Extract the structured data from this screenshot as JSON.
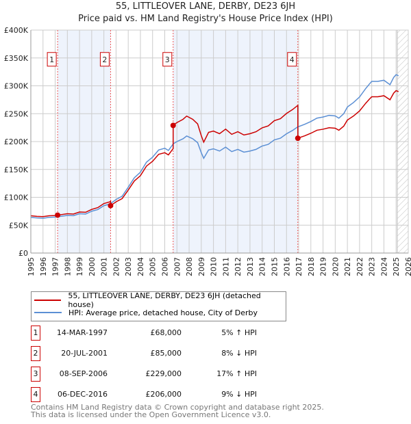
{
  "title": "55, LITTLEOVER LANE, DERBY, DE23 6JH",
  "subtitle": "Price paid vs. HM Land Registry's House Price Index (HPI)",
  "chart_data": {
    "type": "line",
    "title": "55, LITTLEOVER LANE, DERBY, DE23 6JH - Price paid vs. HM Land Registry's House Price Index (HPI)",
    "xlim": [
      1995,
      2026
    ],
    "ylim": [
      0,
      400000
    ],
    "y_ticks": [
      "£0",
      "£50K",
      "£100K",
      "£150K",
      "£200K",
      "£250K",
      "£300K",
      "£350K",
      "£400K"
    ],
    "x_ticks": [
      "1995",
      "1996",
      "1997",
      "1998",
      "1999",
      "2000",
      "2001",
      "2002",
      "2003",
      "2004",
      "2005",
      "2006",
      "2007",
      "2008",
      "2009",
      "2010",
      "2011",
      "2012",
      "2013",
      "2014",
      "2015",
      "2016",
      "2017",
      "2018",
      "2019",
      "2020",
      "2021",
      "2022",
      "2023",
      "2024",
      "2025",
      "2026"
    ],
    "grid": true,
    "forecast_hatch_from": 2025.1,
    "colors": {
      "price": "#cc0000",
      "hpi": "#5b8fd4",
      "band": "#eef3fc"
    },
    "hpi_series": {
      "name": "HPI: Average price, detached house, City of Derby",
      "x": [
        1995,
        1995.5,
        1996,
        1996.5,
        1997,
        1997.5,
        1998,
        1998.5,
        1999,
        1999.5,
        2000,
        2000.5,
        2001,
        2001.5,
        2002,
        2002.5,
        2003,
        2003.5,
        2004,
        2004.5,
        2005,
        2005.5,
        2006,
        2006.3,
        2006.7,
        2007,
        2007.5,
        2007.8,
        2008.3,
        2008.7,
        2009,
        2009.2,
        2009.6,
        2010,
        2010.5,
        2011,
        2011.5,
        2012,
        2012.5,
        2013,
        2013.5,
        2014,
        2014.5,
        2015,
        2015.5,
        2016,
        2016.5,
        2016.9,
        2017.5,
        2018,
        2018.5,
        2019,
        2019.5,
        2020,
        2020.3,
        2020.7,
        2021,
        2021.5,
        2022,
        2022.5,
        2022.8,
        2023,
        2023.5,
        2024,
        2024.5,
        2024.8,
        2025,
        2025.2
      ],
      "y": [
        64000,
        63000,
        62500,
        64000,
        64500,
        66000,
        67500,
        67000,
        70500,
        70000,
        75000,
        78000,
        85000,
        88000,
        96000,
        102000,
        118000,
        135000,
        145000,
        163000,
        172000,
        185000,
        188000,
        184000,
        196000,
        200000,
        205000,
        210000,
        205000,
        198000,
        180000,
        170000,
        185000,
        187000,
        183000,
        190000,
        182000,
        186000,
        181000,
        183000,
        186000,
        192000,
        195000,
        203000,
        206000,
        214000,
        220000,
        226000,
        231000,
        236000,
        242000,
        244000,
        247000,
        246000,
        242000,
        250000,
        262000,
        270000,
        280000,
        295000,
        303000,
        308000,
        308000,
        310000,
        302000,
        315000,
        320000,
        318000
      ]
    },
    "sales": [
      {
        "label": "1",
        "date": "14-MAR-1997",
        "x": 1997.2,
        "price": 68000,
        "price_text": "£68,000",
        "delta": "5% ↑ HPI"
      },
      {
        "label": "2",
        "date": "20-JUL-2001",
        "x": 2001.55,
        "price": 85000,
        "price_text": "£85,000",
        "delta": "8% ↓ HPI"
      },
      {
        "label": "3",
        "date": "08-SEP-2006",
        "x": 2006.69,
        "price": 229000,
        "price_text": "£229,000",
        "delta": "17% ↑ HPI"
      },
      {
        "label": "4",
        "date": "06-DEC-2016",
        "x": 2016.93,
        "price": 206000,
        "price_text": "£206,000",
        "delta": "9% ↓ HPI"
      }
    ],
    "legend": {
      "price": "55, LITTLEOVER LANE, DERBY, DE23 6JH (detached house)",
      "hpi": "HPI: Average price, detached house, City of Derby"
    }
  },
  "footer": {
    "line1": "Contains HM Land Registry data © Crown copyright and database right 2025.",
    "line2": "This data is licensed under the Open Government Licence v3.0."
  }
}
